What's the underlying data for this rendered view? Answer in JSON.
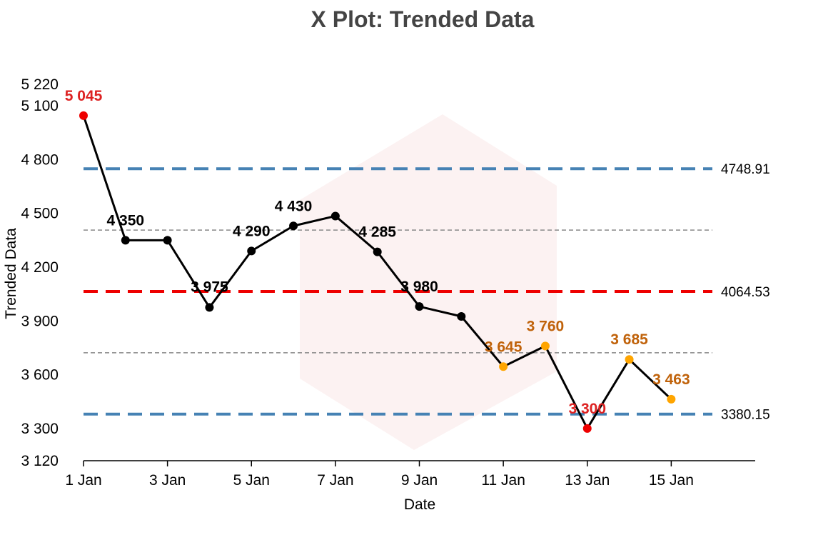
{
  "chart_data": {
    "type": "line",
    "title": "X Plot: Trended Data",
    "xlabel": "Date",
    "ylabel": "Trended Data",
    "x": [
      "1 Jan",
      "2 Jan",
      "3 Jan",
      "4 Jan",
      "5 Jan",
      "6 Jan",
      "7 Jan",
      "8 Jan",
      "9 Jan",
      "10 Jan",
      "11 Jan",
      "12 Jan",
      "13 Jan",
      "14 Jan",
      "15 Jan"
    ],
    "x_tick_labels": [
      "1 Jan",
      "3 Jan",
      "5 Jan",
      "7 Jan",
      "9 Jan",
      "11 Jan",
      "13 Jan",
      "15 Jan"
    ],
    "values": [
      5045,
      4350,
      4350,
      3975,
      4290,
      4430,
      4485,
      4285,
      3980,
      3925,
      3645,
      3760,
      3300,
      3685,
      3463
    ],
    "point_labels": [
      "5 045",
      "4 350",
      "",
      "3 975",
      "4 290",
      "4 430",
      "",
      "4 285",
      "3 980",
      "",
      "3 645",
      "3 760",
      "3 300",
      "3 685",
      "3 463"
    ],
    "point_status": [
      "out",
      "normal",
      "normal",
      "normal",
      "normal",
      "normal",
      "normal",
      "normal",
      "normal",
      "normal",
      "warn",
      "warn",
      "out",
      "warn",
      "warn"
    ],
    "y_ticks": [
      3120,
      3300,
      3600,
      3900,
      4200,
      4500,
      4800,
      5100,
      5220
    ],
    "y_tick_labels": [
      "3 120",
      "3 300",
      "3 600",
      "3 900",
      "4 200",
      "4 500",
      "4 800",
      "5 100",
      "5 220"
    ],
    "ylim": [
      3120,
      5220
    ],
    "xlim_days": [
      1,
      17
    ],
    "reference_lines": [
      {
        "value": 4748.91,
        "label": "4748.91",
        "style": "dashed",
        "color": "#4682b4",
        "role": "upper-limit"
      },
      {
        "value": 4064.53,
        "label": "4064.53",
        "style": "dashed",
        "color": "#ee0000",
        "role": "center-line"
      },
      {
        "value": 3380.15,
        "label": "3380.15",
        "style": "dashed",
        "color": "#4682b4",
        "role": "lower-limit"
      },
      {
        "value": 4406.72,
        "label": "",
        "style": "dotted",
        "color": "#888888",
        "role": "upper-sigma"
      },
      {
        "value": 3722.34,
        "label": "",
        "style": "dotted",
        "color": "#888888",
        "role": "lower-sigma"
      }
    ],
    "colors": {
      "line": "#000000",
      "normal": "#000000",
      "warn": "#ffa500",
      "warn_label": "#c0620a",
      "out": "#ee0000",
      "out_label": "#dd2222"
    },
    "grid": false,
    "legend": "none"
  }
}
